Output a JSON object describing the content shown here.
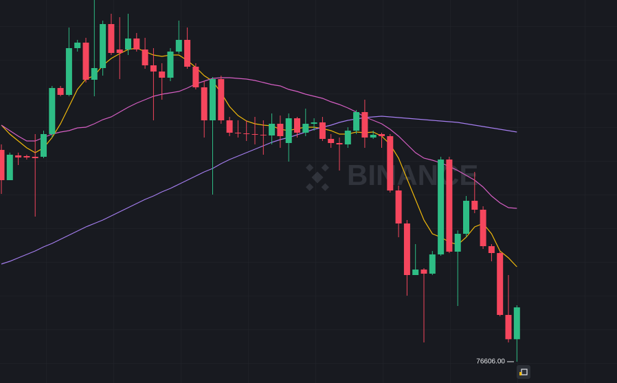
{
  "chart_data": {
    "type": "candlestick",
    "watermark": "BINANCE",
    "ylim": [
      76234,
      82918
    ],
    "up_color": "#2ebd85",
    "down_color": "#f6465d",
    "open": [
      80302,
      79774,
      80206,
      80194,
      80182,
      80182,
      80578,
      81382,
      81262,
      82078,
      82174,
      81526,
      81730,
      82498,
      82054,
      82054,
      82246,
      82054,
      81778,
      81670,
      81562,
      82018,
      82222,
      81754,
      81394,
      80818,
      81538,
      80818,
      80602,
      80590,
      80578,
      80566,
      80554,
      80758,
      80422,
      80854,
      80602,
      80758,
      80782,
      80494,
      80422,
      80398,
      80638,
      80962,
      80518,
      80578,
      80542,
      79594,
      79018,
      78118,
      78214,
      78142,
      78478,
      80134,
      78526,
      78838,
      79414,
      79258,
      78622,
      78502,
      77422,
      76998
    ],
    "high": [
      80398,
      80254,
      80254,
      80218,
      80578,
      80638,
      81418,
      81418,
      82438,
      82222,
      82258,
      82918,
      82558,
      82678,
      82618,
      82678,
      82342,
      82258,
      82078,
      81814,
      82078,
      82558,
      82438,
      81814,
      81502,
      81574,
      81598,
      80878,
      80818,
      80818,
      80878,
      80818,
      80938,
      80902,
      80938,
      80878,
      81022,
      80854,
      80878,
      80578,
      80518,
      80698,
      80998,
      81178,
      80638,
      80602,
      80578,
      79678,
      79078,
      78658,
      78238,
      78538,
      80182,
      80182,
      78898,
      79498,
      79918,
      79318,
      78658,
      78538,
      78118,
      77590
    ],
    "low": [
      79534,
      79774,
      80038,
      80134,
      79138,
      80158,
      80518,
      81238,
      81238,
      82018,
      81478,
      81238,
      81598,
      81958,
      81538,
      81958,
      82018,
      81718,
      80818,
      81178,
      81502,
      81982,
      81718,
      81358,
      80518,
      79522,
      80758,
      80542,
      80518,
      80458,
      80398,
      80218,
      80398,
      80338,
      80098,
      80518,
      80542,
      80638,
      80458,
      80338,
      79942,
      80338,
      80578,
      80338,
      80494,
      80338,
      79558,
      78778,
      77758,
      78118,
      76942,
      78118,
      78454,
      78502,
      77578,
      78778,
      79198,
      78574,
      78358,
      77398,
      76942,
      76606
    ],
    "close": [
      79774,
      80218,
      80170,
      80170,
      80158,
      80578,
      81382,
      81262,
      82078,
      82174,
      81526,
      81730,
      82498,
      81994,
      81994,
      82246,
      82054,
      81778,
      81670,
      81562,
      82018,
      82222,
      81754,
      81394,
      80818,
      81538,
      80818,
      80602,
      80590,
      80578,
      80566,
      80554,
      80758,
      80542,
      80854,
      80602,
      80758,
      80782,
      80494,
      80422,
      80398,
      80638,
      80962,
      80518,
      80566,
      80542,
      79594,
      79018,
      78118,
      78214,
      78142,
      78478,
      80134,
      78526,
      78838,
      79414,
      79258,
      78622,
      78502,
      77422,
      76998,
      77554
    ],
    "lines": [
      {
        "color": "#f0b90b",
        "values": [
          80734,
          80578,
          80458,
          80338,
          80254,
          80338,
          80518,
          80758,
          81058,
          81358,
          81538,
          81598,
          81778,
          81898,
          81982,
          82054,
          82078,
          82018,
          81958,
          81934,
          81958,
          81958,
          81862,
          81742,
          81598,
          81502,
          81298,
          81058,
          80902,
          80806,
          80758,
          80734,
          80722,
          80662,
          80638,
          80674,
          80698,
          80698,
          80674,
          80638,
          80578,
          80578,
          80614,
          80602,
          80614,
          80542,
          80398,
          80158,
          79798,
          79438,
          79078,
          78838,
          78778,
          78694,
          78646,
          78778,
          78958,
          79018,
          78838,
          78538,
          78418,
          78262
        ]
      },
      {
        "color": "#d65fc4",
        "values": [
          80734,
          80638,
          80542,
          80458,
          80458,
          80518,
          80578,
          80614,
          80638,
          80686,
          80698,
          80758,
          80830,
          80878,
          80962,
          81046,
          81118,
          81178,
          81238,
          81274,
          81298,
          81322,
          81382,
          81454,
          81502,
          81550,
          81562,
          81562,
          81550,
          81538,
          81514,
          81478,
          81442,
          81418,
          81358,
          81322,
          81274,
          81238,
          81202,
          81142,
          81094,
          81034,
          80962,
          80878,
          80818,
          80758,
          80662,
          80542,
          80398,
          80254,
          80158,
          80122,
          80074,
          80014,
          79942,
          79858,
          79774,
          79654,
          79498,
          79378,
          79294,
          79282
        ]
      },
      {
        "color": "#a57ef0",
        "values": [
          78310,
          78358,
          78418,
          78478,
          78538,
          78610,
          78670,
          78742,
          78814,
          78886,
          78958,
          79018,
          79078,
          79150,
          79222,
          79294,
          79366,
          79438,
          79498,
          79570,
          79630,
          79702,
          79774,
          79846,
          79918,
          79978,
          80062,
          80134,
          80194,
          80254,
          80314,
          80374,
          80434,
          80482,
          80518,
          80566,
          80614,
          80662,
          80698,
          80734,
          80782,
          80818,
          80842,
          80866,
          80878,
          80890,
          80878,
          80866,
          80854,
          80842,
          80830,
          80818,
          80806,
          80794,
          80782,
          80758,
          80734,
          80710,
          80686,
          80662,
          80638,
          80614
        ]
      }
    ],
    "price_label": {
      "value": 76606,
      "label": "76606.00"
    }
  }
}
